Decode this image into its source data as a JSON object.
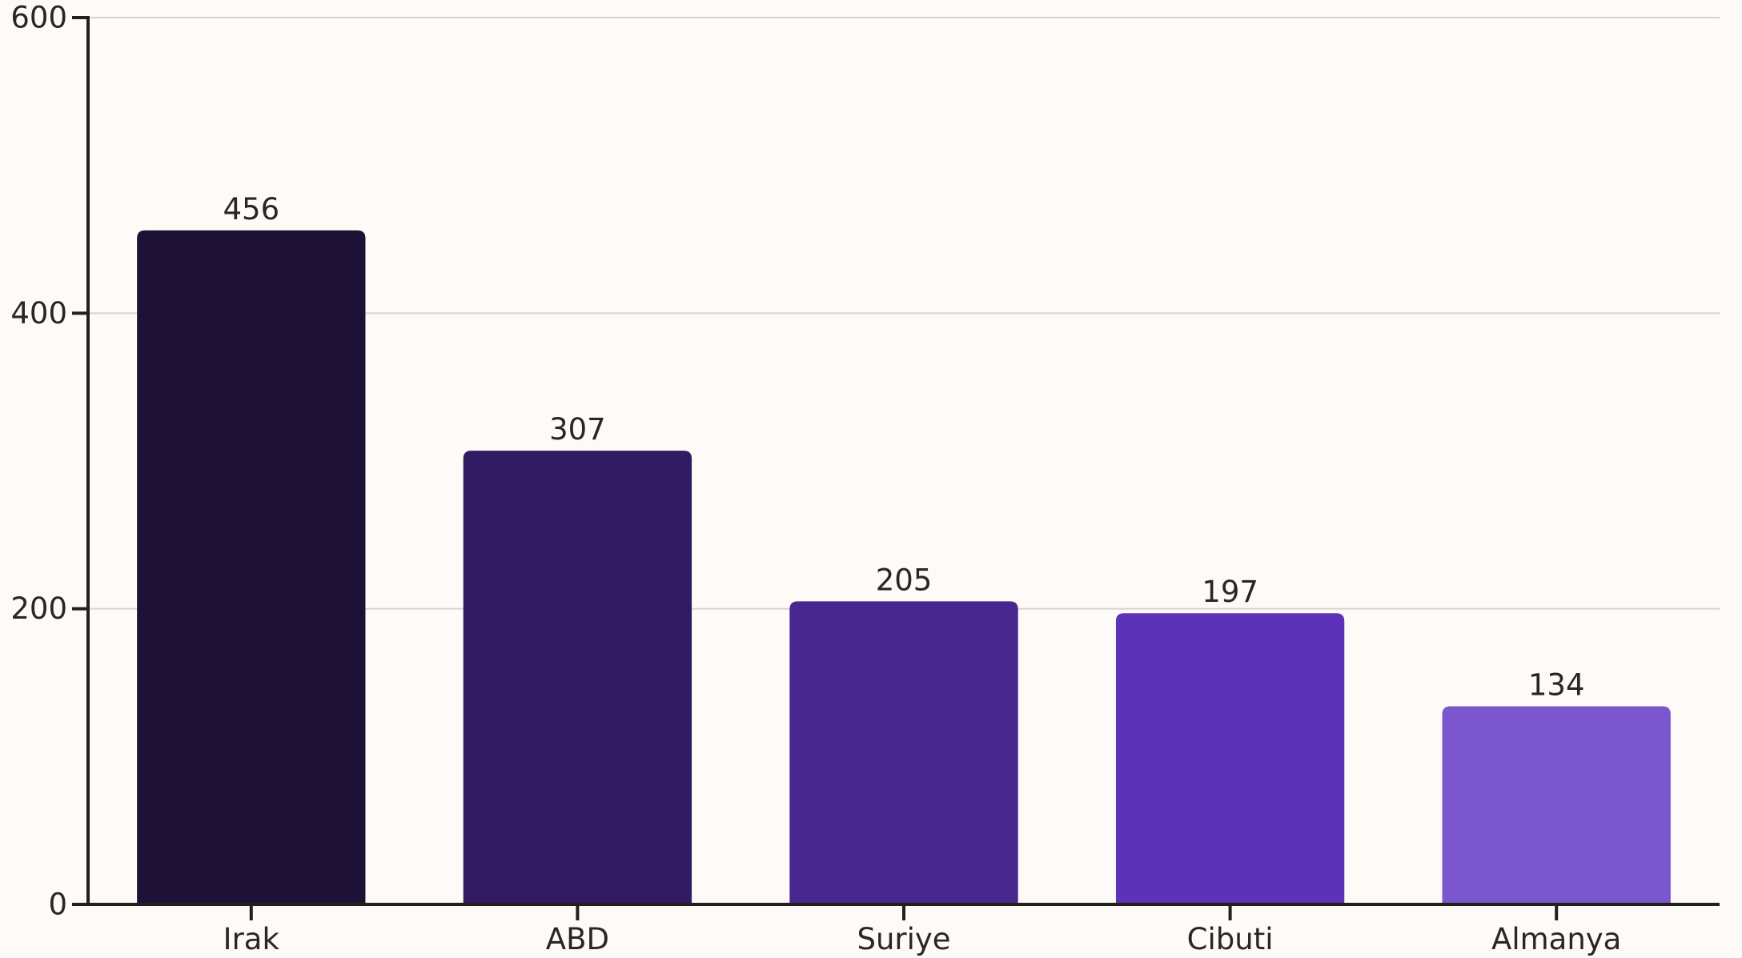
{
  "chart_data": {
    "type": "bar",
    "title": "",
    "xlabel": "",
    "ylabel": "",
    "categories": [
      "Irak",
      "ABD",
      "Suriye",
      "Cibuti",
      "Almanya"
    ],
    "values": [
      456,
      307,
      205,
      197,
      134
    ],
    "value_labels": [
      "456",
      "307",
      "205",
      "197",
      "134"
    ],
    "ylim": [
      0,
      600
    ],
    "yticks": [
      0,
      200,
      400,
      600
    ],
    "ytick_labels": [
      "0",
      "200",
      "400",
      "600"
    ],
    "grid": true,
    "legend": "none",
    "colors": [
      "#1d1135",
      "#311b62",
      "#46288f",
      "#5c32b8",
      "#7b57cf"
    ]
  }
}
